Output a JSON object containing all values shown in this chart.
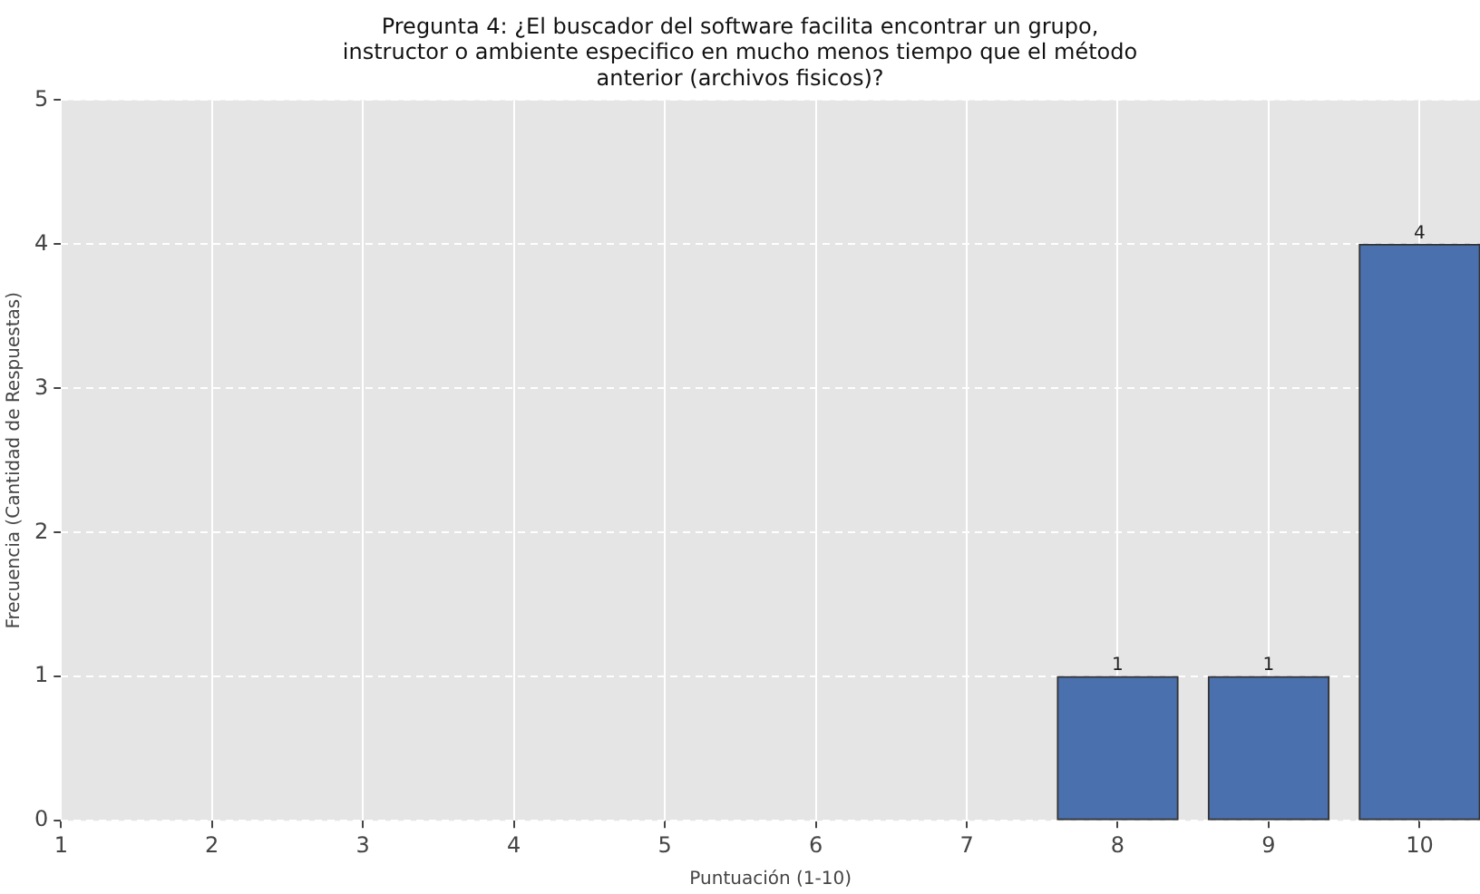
{
  "chart_data": {
    "type": "bar",
    "title": "Pregunta 4: ¿El buscador del software facilita encontrar un grupo, instructor o ambiente especifico en mucho menos tiempo que el método anterior (archivos fisicos)?",
    "xlabel": "Puntuación (1-10)",
    "ylabel": "Frecuencia (Cantidad de Respuestas)",
    "x": [
      8,
      9,
      10
    ],
    "values": [
      1,
      1,
      4
    ],
    "color": "#4a70ae",
    "xlim": [
      1,
      10.4
    ],
    "xticks": [
      1,
      2,
      3,
      4,
      5,
      6,
      7,
      8,
      9,
      10
    ],
    "ylim": [
      0,
      5
    ],
    "yticks": [
      0,
      1,
      2,
      3,
      4,
      5
    ],
    "grid": true,
    "data_labels": true
  }
}
